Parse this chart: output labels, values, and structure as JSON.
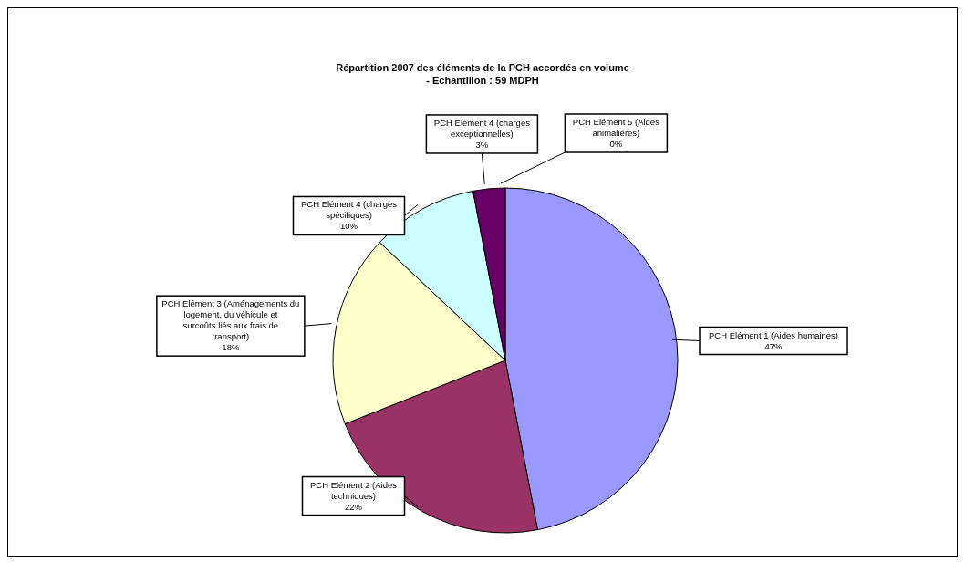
{
  "chart_data": {
    "type": "pie",
    "title": "Répartition 2007 des éléments de la PCH accordés en volume\n- Echantillon : 59 MDPH",
    "categories": [
      "PCH Elément 1 (Aides humaines)",
      "PCH Elément 2 (Aides techniques)",
      "PCH Elément 3 (Aménagements du logement, du véhicule et surcoûts liés aux frais de transport)",
      "PCH Elément 4 (charges spécifiques)",
      "PCH Elément 4 (charges exceptionnelles)",
      "PCH Elément 5 (Aides animalières)"
    ],
    "values": [
      47,
      22,
      18,
      10,
      3,
      0
    ],
    "value_labels": [
      "47%",
      "22%",
      "18%",
      "10%",
      "3%",
      "0%"
    ],
    "colors": [
      "#9999ff",
      "#993366",
      "#ffffcc",
      "#ccffff",
      "#660066",
      "#ff8080"
    ]
  }
}
